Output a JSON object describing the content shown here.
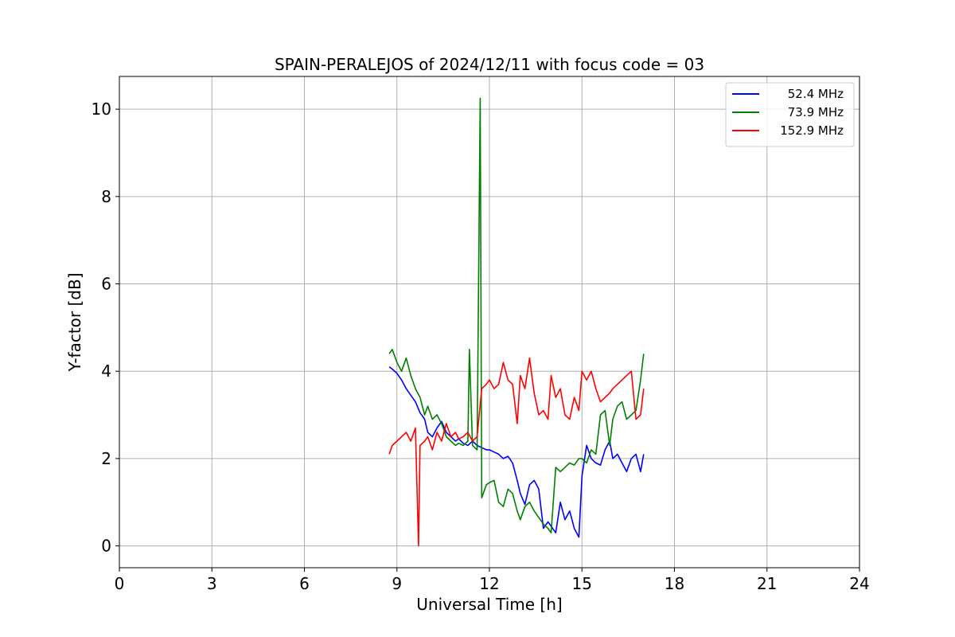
{
  "chart_data": {
    "type": "line",
    "title": "SPAIN-PERALEJOS of 2024/12/11 with focus code = 03",
    "xlabel": "Universal Time [h]",
    "ylabel": "Y-factor [dB]",
    "xlim": [
      0,
      24
    ],
    "ylim": [
      -0.5,
      10.75
    ],
    "xticks": [
      0,
      3,
      6,
      9,
      12,
      15,
      18,
      21,
      24
    ],
    "yticks": [
      0,
      2,
      4,
      6,
      8,
      10
    ],
    "xtick_labels": [
      "0",
      "3",
      "6",
      "9",
      "12",
      "15",
      "18",
      "21",
      "24"
    ],
    "ytick_labels": [
      "0",
      "2",
      "4",
      "6",
      "8",
      "10"
    ],
    "grid": true,
    "legend_position": "top-right",
    "series": [
      {
        "name": "52.4 MHz",
        "color": "#0000ff",
        "x": [
          8.75,
          8.85,
          9.0,
          9.15,
          9.3,
          9.45,
          9.6,
          9.75,
          9.9,
          10.0,
          10.15,
          10.3,
          10.45,
          10.6,
          10.75,
          10.9,
          11.0,
          11.15,
          11.3,
          11.45,
          11.6,
          11.75,
          11.9,
          12.0,
          12.15,
          12.3,
          12.45,
          12.6,
          12.75,
          12.9,
          13.0,
          13.15,
          13.3,
          13.45,
          13.6,
          13.75,
          13.9,
          14.0,
          14.15,
          14.3,
          14.45,
          14.6,
          14.75,
          14.9,
          15.0,
          15.15,
          15.3,
          15.45,
          15.6,
          15.75,
          15.9,
          16.0,
          16.15,
          16.3,
          16.45,
          16.6,
          16.75,
          16.9,
          17.0
        ],
        "y": [
          4.1,
          4.05,
          3.95,
          3.8,
          3.6,
          3.45,
          3.3,
          3.05,
          2.9,
          2.6,
          2.5,
          2.7,
          2.85,
          2.6,
          2.5,
          2.4,
          2.45,
          2.35,
          2.3,
          2.4,
          2.3,
          2.25,
          2.2,
          2.2,
          2.15,
          2.1,
          2.0,
          2.05,
          1.9,
          1.5,
          1.2,
          0.95,
          1.4,
          1.5,
          1.3,
          0.4,
          0.55,
          0.45,
          0.3,
          1.0,
          0.6,
          0.8,
          0.4,
          0.2,
          1.6,
          2.3,
          2.0,
          1.9,
          1.85,
          2.2,
          2.4,
          2.0,
          2.1,
          1.9,
          1.7,
          2.0,
          2.1,
          1.7,
          2.1
        ]
      },
      {
        "name": "73.9 MHz",
        "color": "#008000",
        "x": [
          8.75,
          8.85,
          9.0,
          9.15,
          9.3,
          9.45,
          9.6,
          9.75,
          9.9,
          10.0,
          10.15,
          10.3,
          10.45,
          10.6,
          10.75,
          10.9,
          11.0,
          11.15,
          11.3,
          11.35,
          11.45,
          11.6,
          11.7,
          11.75,
          11.9,
          12.0,
          12.15,
          12.3,
          12.45,
          12.6,
          12.75,
          12.9,
          13.0,
          13.15,
          13.3,
          13.45,
          13.6,
          13.75,
          13.9,
          14.0,
          14.15,
          14.3,
          14.45,
          14.6,
          14.75,
          14.9,
          15.0,
          15.15,
          15.3,
          15.45,
          15.6,
          15.75,
          15.9,
          16.0,
          16.15,
          16.3,
          16.45,
          16.6,
          16.75,
          16.9,
          17.0
        ],
        "y": [
          4.4,
          4.5,
          4.2,
          4.0,
          4.3,
          3.9,
          3.6,
          3.4,
          3.0,
          3.2,
          2.9,
          3.0,
          2.8,
          2.5,
          2.4,
          2.3,
          2.35,
          2.3,
          2.4,
          4.5,
          2.3,
          2.2,
          10.25,
          1.1,
          1.4,
          1.45,
          1.5,
          1.0,
          0.9,
          1.3,
          1.2,
          0.8,
          0.6,
          0.9,
          1.0,
          0.8,
          0.65,
          0.5,
          0.4,
          0.3,
          1.8,
          1.7,
          1.8,
          1.9,
          1.85,
          2.0,
          2.0,
          1.9,
          2.2,
          2.1,
          3.0,
          3.1,
          2.3,
          2.9,
          3.2,
          3.3,
          2.9,
          3.0,
          3.1,
          3.8,
          4.4
        ]
      },
      {
        "name": "152.9 MHz",
        "color": "#ff0000",
        "x": [
          8.75,
          8.85,
          9.0,
          9.15,
          9.3,
          9.45,
          9.6,
          9.7,
          9.75,
          9.9,
          10.0,
          10.15,
          10.3,
          10.45,
          10.6,
          10.75,
          10.9,
          11.0,
          11.15,
          11.3,
          11.45,
          11.6,
          11.75,
          11.9,
          12.0,
          12.15,
          12.3,
          12.45,
          12.6,
          12.75,
          12.9,
          13.0,
          13.15,
          13.3,
          13.45,
          13.6,
          13.75,
          13.9,
          14.0,
          14.15,
          14.3,
          14.45,
          14.6,
          14.75,
          14.9,
          15.0,
          15.15,
          15.3,
          15.45,
          15.6,
          15.75,
          15.9,
          16.0,
          16.15,
          16.3,
          16.45,
          16.6,
          16.75,
          16.9,
          17.0
        ],
        "y": [
          2.1,
          2.3,
          2.4,
          2.5,
          2.6,
          2.4,
          2.7,
          0.0,
          2.3,
          2.4,
          2.5,
          2.2,
          2.6,
          2.4,
          2.8,
          2.5,
          2.6,
          2.45,
          2.5,
          2.6,
          2.4,
          2.5,
          3.6,
          3.7,
          3.8,
          3.6,
          3.7,
          4.2,
          3.8,
          3.7,
          2.8,
          3.9,
          3.6,
          4.3,
          3.5,
          3.0,
          3.1,
          2.9,
          3.9,
          3.4,
          3.6,
          3.0,
          2.9,
          3.4,
          3.1,
          4.0,
          3.8,
          4.0,
          3.6,
          3.3,
          3.4,
          3.5,
          3.6,
          3.7,
          3.8,
          3.9,
          4.0,
          2.9,
          3.0,
          3.6
        ]
      }
    ]
  }
}
